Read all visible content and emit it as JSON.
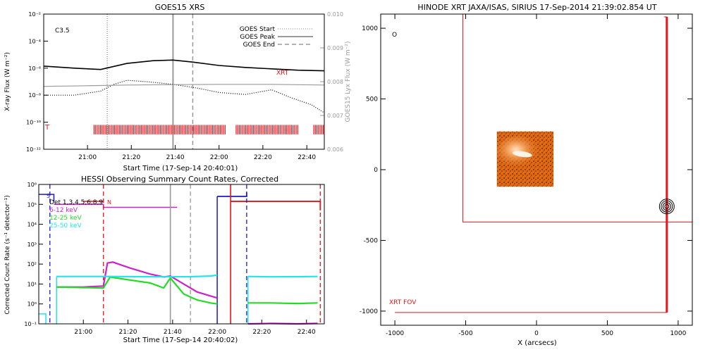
{
  "colors": {
    "axis": "#000000",
    "gray": "#9a9a9a",
    "red": "#e8141c",
    "blue": "#1a1acc",
    "magenta": "#cc22cc",
    "green": "#22dd22",
    "cyan": "#22e6e6",
    "orange": "#e36a12",
    "orange_light": "#f2b07a"
  },
  "chart_data": [
    {
      "id": "goes",
      "type": "line",
      "title": "GOES15 XRS",
      "class_label": "C3.5",
      "xlabel": "Start Time (17-Sep-14 20:40:01)",
      "ylabel": "X-ray Flux (W m⁻²)",
      "ylabel_right": "GOES15 Lyx Flux (W m⁻²)",
      "xlim": [
        20.667,
        22.8
      ],
      "ylim_log": [
        -12,
        -2
      ],
      "y2lim": [
        0.006,
        0.01
      ],
      "x_ticks": [
        {
          "v": 21.0,
          "label": "21:00"
        },
        {
          "v": 21.333,
          "label": "21:20"
        },
        {
          "v": 21.667,
          "label": "21:40"
        },
        {
          "v": 22.0,
          "label": "22:00"
        },
        {
          "v": 22.333,
          "label": "22:20"
        },
        {
          "v": 22.667,
          "label": "22:40"
        }
      ],
      "y_ticks": [
        {
          "v": -12,
          "label": "10⁻¹²"
        },
        {
          "v": -10,
          "label": "10⁻¹⁰"
        },
        {
          "v": -8,
          "label": "10⁻⁸"
        },
        {
          "v": -6,
          "label": "10⁻⁶"
        },
        {
          "v": -4,
          "label": "10⁻⁴"
        },
        {
          "v": -2,
          "label": "10⁻²"
        }
      ],
      "y2_ticks": [
        {
          "v": 0.006,
          "label": "0.006"
        },
        {
          "v": 0.007,
          "label": "0.007"
        },
        {
          "v": 0.008,
          "label": "0.008"
        },
        {
          "v": 0.009,
          "label": "0.009"
        },
        {
          "v": 0.01,
          "label": "0.010"
        }
      ],
      "legend": [
        {
          "label": "GOES Start",
          "style": "dotted"
        },
        {
          "label": "GOES Peak",
          "style": "solid"
        },
        {
          "label": "GOES End",
          "style": "dashed"
        }
      ],
      "vlines": [
        {
          "name": "goes-start-line",
          "x": 21.15,
          "style": "dotted"
        },
        {
          "name": "goes-peak-line",
          "x": 21.65,
          "style": "solid"
        },
        {
          "name": "goes-end-line",
          "x": 21.8,
          "style": "dashed"
        }
      ],
      "xrt_label": "XRT",
      "xrt_marker": "T",
      "xrt_obs_ranges": [
        [
          21.05,
          22.05
        ],
        [
          22.13,
          22.6
        ],
        [
          22.72,
          22.8
        ]
      ],
      "series": [
        {
          "name": "long",
          "style": "solid",
          "color": "axis",
          "x": [
            20.667,
            20.9,
            21.1,
            21.3,
            21.5,
            21.65,
            21.8,
            22.0,
            22.2,
            22.4,
            22.6,
            22.8
          ],
          "logy": [
            -5.85,
            -6.0,
            -6.1,
            -5.65,
            -5.45,
            -5.4,
            -5.55,
            -5.8,
            -5.95,
            -6.05,
            -6.15,
            -6.2
          ]
        },
        {
          "name": "short",
          "style": "dotted",
          "color": "axis",
          "x": [
            20.667,
            20.9,
            21.1,
            21.2,
            21.3,
            21.45,
            21.65,
            21.85,
            22.0,
            22.2,
            22.4,
            22.55,
            22.7,
            22.8
          ],
          "logy": [
            -8.0,
            -8.0,
            -7.7,
            -7.2,
            -6.9,
            -7.0,
            -7.2,
            -7.5,
            -7.8,
            -7.95,
            -7.6,
            -8.2,
            -8.7,
            -9.3
          ]
        },
        {
          "name": "lyx",
          "style": "solid",
          "color": "gray",
          "x": [
            20.667,
            21.0,
            21.3,
            21.6,
            22.0,
            22.4,
            22.8
          ],
          "y2": [
            0.00786,
            0.00788,
            0.0079,
            0.00791,
            0.00792,
            0.00792,
            0.0079
          ]
        }
      ]
    },
    {
      "id": "hessi",
      "type": "line",
      "title": "HESSI Observing Summary Count Rates, Corrected",
      "xlabel": "Start Time (17-Sep-14 20:40:02)",
      "ylabel": "Corrected Count Rate (s⁻¹ detector⁻¹)",
      "xlim": [
        20.667,
        22.8
      ],
      "ylim_log": [
        -1,
        6
      ],
      "x_ticks": [
        {
          "v": 21.0,
          "label": "21:00"
        },
        {
          "v": 21.333,
          "label": "21:20"
        },
        {
          "v": 21.667,
          "label": "21:40"
        },
        {
          "v": 22.0,
          "label": "22:00"
        },
        {
          "v": 22.333,
          "label": "22:20"
        },
        {
          "v": 22.667,
          "label": "22:40"
        }
      ],
      "y_ticks": [
        {
          "v": -1,
          "label": "10⁻¹"
        },
        {
          "v": 0,
          "label": "10⁰"
        },
        {
          "v": 1,
          "label": "10¹"
        },
        {
          "v": 2,
          "label": "10²"
        },
        {
          "v": 3,
          "label": "10³"
        },
        {
          "v": 4,
          "label": "10⁴"
        },
        {
          "v": 5,
          "label": "10⁵"
        },
        {
          "v": 6,
          "label": "10⁶"
        }
      ],
      "legend": [
        {
          "label": "Det 1,3,4,5,6,8,9",
          "color": "axis"
        },
        {
          "label": "6-12 keV",
          "color": "magenta"
        },
        {
          "label": "12-25 keV",
          "color": "green"
        },
        {
          "label": "25-50 keV",
          "color": "cyan"
        }
      ],
      "markers": [
        {
          "label": "S",
          "color": "blue"
        },
        {
          "label": "N",
          "color": "red"
        }
      ],
      "vlines": [
        {
          "name": "hessi-start-line",
          "x": 21.15,
          "style": "dashed",
          "color": "red"
        },
        {
          "name": "hessi-peak-line",
          "x": 21.65,
          "style": "solid",
          "color": "gray"
        },
        {
          "name": "hessi-end-line",
          "x": 21.8,
          "style": "dashed",
          "color": "gray"
        },
        {
          "name": "hessi-night-line-1",
          "x": 22.1,
          "style": "solid",
          "color": "red"
        },
        {
          "name": "hessi-saa-line-1",
          "x": 20.75,
          "style": "dashed",
          "color": "blue"
        },
        {
          "name": "hessi-saa-line-2",
          "x": 22.22,
          "style": "dashed",
          "color": "blue"
        },
        {
          "name": "hessi-night-line-2",
          "x": 22.77,
          "style": "dashed",
          "color": "red"
        }
      ],
      "series": [
        {
          "name": "6-12 keV",
          "color": "magenta",
          "x": [
            20.8,
            21.0,
            21.15,
            21.18,
            21.22,
            21.35,
            21.5,
            21.6,
            21.65,
            21.75,
            21.85,
            21.95,
            22.0
          ],
          "logy": [
            0.85,
            0.85,
            0.9,
            2.05,
            2.1,
            1.8,
            1.5,
            1.35,
            1.4,
            1.0,
            0.6,
            0.4,
            0.3
          ]
        },
        {
          "name": "12-25 keV",
          "color": "green",
          "x": [
            20.8,
            21.0,
            21.15,
            21.2,
            21.35,
            21.5,
            21.6,
            21.65,
            21.7,
            21.75,
            21.85,
            21.95,
            22.0
          ],
          "logy": [
            0.85,
            0.82,
            0.8,
            1.35,
            1.2,
            1.05,
            0.8,
            1.3,
            0.9,
            0.5,
            0.2,
            0.05,
            0.0
          ]
        },
        {
          "name": "25-50 keV",
          "color": "cyan",
          "x": [
            20.8,
            21.0,
            21.2,
            21.4,
            21.6,
            21.8,
            21.95,
            22.0
          ],
          "logy": [
            1.38,
            1.38,
            1.38,
            1.37,
            1.36,
            1.37,
            1.4,
            1.45
          ]
        },
        {
          "name": "12-25 keV late",
          "color": "green",
          "x": [
            22.23,
            22.4,
            22.6,
            22.75
          ],
          "logy": [
            0.05,
            0.05,
            0.02,
            0.05
          ]
        },
        {
          "name": "25-50 keV late",
          "color": "cyan",
          "x": [
            22.23,
            22.4,
            22.6,
            22.75
          ],
          "logy": [
            1.38,
            1.36,
            1.37,
            1.38
          ]
        },
        {
          "name": "6-12 keV late",
          "color": "magenta",
          "x": [
            22.23,
            22.4,
            22.6,
            22.75
          ],
          "logy": [
            -1.0,
            -0.98,
            -1.0,
            -0.98
          ]
        }
      ]
    },
    {
      "id": "xrt",
      "type": "scatter",
      "title": "HINODE XRT JAXA/ISAS, SIRIUS 17-Sep-2014 21:39:02.854 UT",
      "xlabel": "X (arcsecs)",
      "ylabel": "",
      "xlim": [
        -1100,
        1100
      ],
      "ylim": [
        -1100,
        1100
      ],
      "x_ticks": [
        -1000,
        -500,
        0,
        500,
        1000
      ],
      "y_ticks": [
        -1000,
        -500,
        0,
        500,
        1000
      ],
      "fov_label": "XRT FOV",
      "circle_marker": "O",
      "fov_box": {
        "x0": -520,
        "x1": 1200,
        "y0": -370,
        "y1": 1100
      },
      "fov_box2": {
        "x0": -1000,
        "x1": 920,
        "y0": -1010,
        "y1": 1080
      },
      "image_box": {
        "x0": -280,
        "x1": 120,
        "y0": -120,
        "y1": 270
      },
      "contour_center": [
        920,
        -260
      ]
    }
  ]
}
